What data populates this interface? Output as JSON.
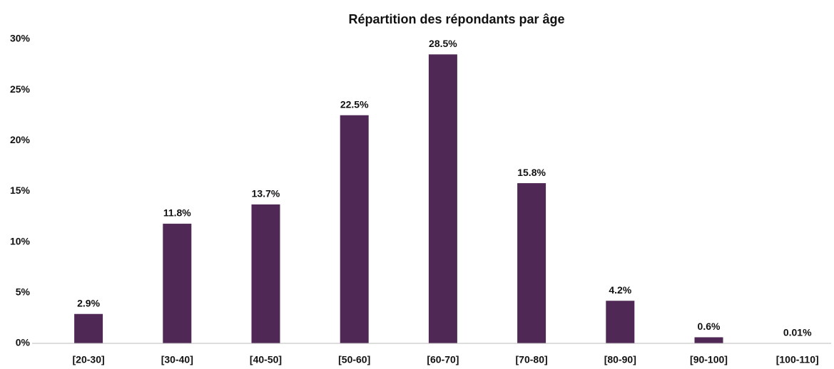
{
  "chart_data": {
    "type": "bar",
    "title": "Répartition des répondants par âge",
    "categories": [
      "[20-30]",
      "[30-40]",
      "[40-50]",
      "[50-60]",
      "[60-70]",
      "[70-80]",
      "[80-90]",
      "[90-100]",
      "[100-110]"
    ],
    "values": [
      2.9,
      11.8,
      13.7,
      22.5,
      28.5,
      15.8,
      4.2,
      0.6,
      0.01
    ],
    "value_labels": [
      "2.9%",
      "11.8%",
      "13.7%",
      "22.5%",
      "28.5%",
      "15.8%",
      "4.2%",
      "0.6%",
      "0.01%"
    ],
    "color": "#4f2855",
    "ylim": [
      0,
      30
    ],
    "yticks": [
      {
        "value": 0,
        "label": "0%"
      },
      {
        "value": 5,
        "label": "5%"
      },
      {
        "value": 10,
        "label": "10%"
      },
      {
        "value": 15,
        "label": "15%"
      },
      {
        "value": 20,
        "label": "20%"
      },
      {
        "value": 25,
        "label": "25%"
      },
      {
        "value": 30,
        "label": "30%"
      }
    ],
    "grid": false
  }
}
